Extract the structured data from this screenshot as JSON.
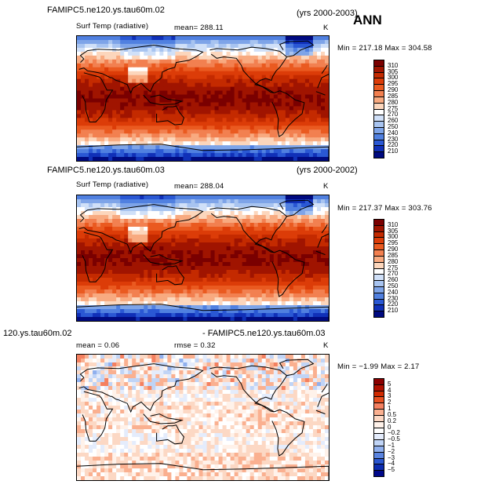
{
  "chart_data": [
    {
      "type": "heatmap",
      "title_left": "FAMIPC5.ne120.ys.tau60m.02",
      "title_right": "(yrs 2000-2003)",
      "season": "ANN",
      "variable": "Surf Temp (radiative)",
      "mean_label": "mean= 288.11",
      "units": "K",
      "minmax_label": "Min = 217.18 Max = 304.58",
      "colorbar": {
        "levels": [
          "310",
          "305",
          "300",
          "295",
          "290",
          "285",
          "280",
          "275",
          "270",
          "260",
          "250",
          "240",
          "230",
          "220",
          "210"
        ],
        "colors": [
          "#7a0000",
          "#a01400",
          "#c42a00",
          "#dc3c08",
          "#ea5a20",
          "#f28050",
          "#f8aa80",
          "#fcd6bc",
          "#ffffff",
          "#d0e0f8",
          "#a8c4f0",
          "#7ea4e8",
          "#5080e0",
          "#2a58d4",
          "#1030b8",
          "#000a80"
        ]
      },
      "field": "absolute"
    },
    {
      "type": "heatmap",
      "title_left": "FAMIPC5.ne120.ys.tau60m.03",
      "title_right": "(yrs 2000-2002)",
      "variable": "Surf Temp (radiative)",
      "mean_label": "mean= 288.04",
      "units": "K",
      "minmax_label": "Min = 217.37 Max = 303.76",
      "colorbar": {
        "levels": [
          "310",
          "305",
          "300",
          "295",
          "290",
          "285",
          "280",
          "275",
          "270",
          "260",
          "250",
          "240",
          "230",
          "220",
          "210"
        ],
        "colors": [
          "#7a0000",
          "#a01400",
          "#c42a00",
          "#dc3c08",
          "#ea5a20",
          "#f28050",
          "#f8aa80",
          "#fcd6bc",
          "#ffffff",
          "#d0e0f8",
          "#a8c4f0",
          "#7ea4e8",
          "#5080e0",
          "#2a58d4",
          "#1030b8",
          "#000a80"
        ]
      },
      "field": "absolute"
    },
    {
      "type": "heatmap",
      "title_left": "120.ys.tau60m.02",
      "title_right": "- FAMIPC5.ne120.ys.tau60m.03",
      "mean_label": "mean =     0.06",
      "rmse_label": "rmse =     0.32",
      "units": "K",
      "minmax_label": "Min =  −1.99 Max =    2.17",
      "colorbar": {
        "levels": [
          "5",
          "4",
          "3",
          "2",
          "1",
          "0.5",
          "0.2",
          "0",
          "−0.2",
          "−0.5",
          "−1",
          "−2",
          "−3",
          "−4",
          "−5"
        ],
        "colors": [
          "#8a0000",
          "#b01000",
          "#d02a00",
          "#e85020",
          "#f48060",
          "#fab090",
          "#fcd8c4",
          "#fff2ea",
          "#ffffff",
          "#e4ecfc",
          "#c0d4f6",
          "#90b0ee",
          "#5a84e0",
          "#2a56d0",
          "#0c2cb0",
          "#00088a"
        ]
      },
      "field": "difference"
    }
  ]
}
